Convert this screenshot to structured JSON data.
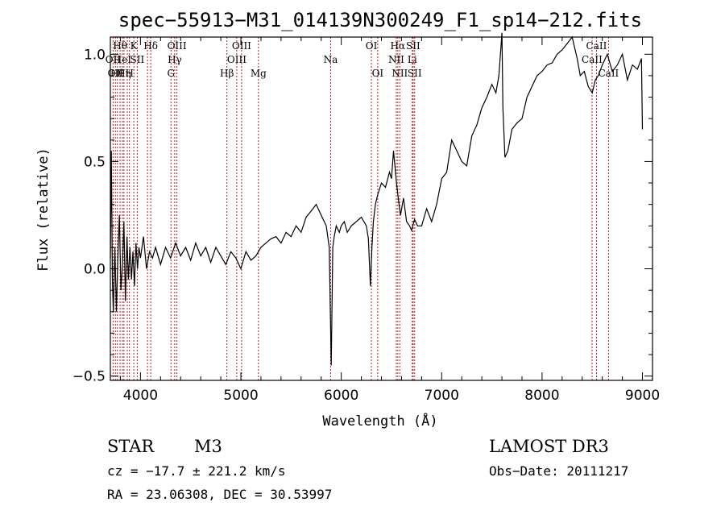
{
  "chart_data": {
    "type": "line",
    "title": "spec−55913−M31_014139N300249_F1_sp14−212.fits",
    "xlabel": "Wavelength (Å)",
    "ylabel": "Flux (relative)",
    "xlim": [
      3700,
      9100
    ],
    "ylim": [
      -0.52,
      1.08
    ],
    "xticks": [
      4000,
      5000,
      6000,
      7000,
      8000,
      9000
    ],
    "yticks": [
      -0.5,
      0.0,
      0.5,
      1.0
    ],
    "ytick_labels": [
      "−0.5",
      "0.0",
      "0.5",
      "1.0"
    ],
    "series": [
      {
        "color": "#000000",
        "x": [
          3700,
          3710,
          3720,
          3730,
          3745,
          3760,
          3775,
          3790,
          3805,
          3820,
          3835,
          3850,
          3865,
          3880,
          3895,
          3910,
          3925,
          3940,
          3955,
          3970,
          3985,
          4000,
          4030,
          4060,
          4090,
          4120,
          4150,
          4200,
          4250,
          4300,
          4350,
          4400,
          4450,
          4500,
          4550,
          4600,
          4650,
          4700,
          4750,
          4800,
          4850,
          4900,
          4950,
          5000,
          5050,
          5100,
          5150,
          5200,
          5250,
          5300,
          5350,
          5400,
          5450,
          5500,
          5550,
          5600,
          5650,
          5700,
          5750,
          5800,
          5850,
          5880,
          5900,
          5915,
          5930,
          5950,
          5980,
          6000,
          6030,
          6060,
          6100,
          6150,
          6200,
          6250,
          6270,
          6290,
          6305,
          6320,
          6340,
          6360,
          6400,
          6440,
          6480,
          6500,
          6520,
          6550,
          6570,
          6590,
          6620,
          6650,
          6680,
          6700,
          6730,
          6760,
          6800,
          6850,
          6900,
          6950,
          7000,
          7050,
          7100,
          7150,
          7200,
          7250,
          7300,
          7350,
          7400,
          7450,
          7500,
          7540,
          7570,
          7590,
          7600,
          7610,
          7630,
          7660,
          7700,
          7750,
          7800,
          7850,
          7900,
          7950,
          8000,
          8050,
          8100,
          8150,
          8200,
          8250,
          8300,
          8330,
          8350,
          8380,
          8420,
          8460,
          8500,
          8530,
          8560,
          8600,
          8650,
          8700,
          8750,
          8800,
          8850,
          8900,
          8950,
          8990,
          9000
        ],
        "y": [
          0.05,
          0.55,
          -0.05,
          -0.2,
          0.1,
          -0.2,
          0.05,
          0.25,
          -0.1,
          0.02,
          0.22,
          -0.15,
          0.15,
          -0.05,
          0.1,
          -0.05,
          0.08,
          -0.08,
          0.12,
          0.0,
          0.1,
          0.05,
          0.15,
          0.0,
          0.08,
          0.05,
          0.1,
          0.02,
          0.1,
          0.05,
          0.12,
          0.06,
          0.1,
          0.04,
          0.12,
          0.06,
          0.1,
          0.03,
          0.1,
          0.06,
          0.02,
          0.08,
          0.05,
          0.0,
          0.08,
          0.04,
          0.06,
          0.1,
          0.12,
          0.14,
          0.15,
          0.12,
          0.17,
          0.15,
          0.2,
          0.17,
          0.24,
          0.27,
          0.3,
          0.25,
          0.2,
          0.1,
          -0.45,
          0.1,
          0.15,
          0.2,
          0.17,
          0.2,
          0.22,
          0.17,
          0.2,
          0.22,
          0.24,
          0.2,
          0.14,
          -0.08,
          0.1,
          0.22,
          0.3,
          0.34,
          0.4,
          0.38,
          0.45,
          0.42,
          0.55,
          0.4,
          0.32,
          0.25,
          0.33,
          0.22,
          0.2,
          0.18,
          0.23,
          0.2,
          0.2,
          0.28,
          0.22,
          0.3,
          0.42,
          0.45,
          0.6,
          0.55,
          0.5,
          0.48,
          0.62,
          0.67,
          0.75,
          0.8,
          0.86,
          0.82,
          0.9,
          1.03,
          1.1,
          0.75,
          0.52,
          0.55,
          0.65,
          0.68,
          0.7,
          0.8,
          0.85,
          0.9,
          0.92,
          0.95,
          0.96,
          1.0,
          1.02,
          1.05,
          1.08,
          1.02,
          0.98,
          0.9,
          0.92,
          0.85,
          0.82,
          0.88,
          0.9,
          0.95,
          1.0,
          0.92,
          0.95,
          1.0,
          0.88,
          0.95,
          0.93,
          0.98,
          0.65
        ]
      }
    ],
    "line_markers": [
      {
        "x": 3727,
        "row": 1,
        "label": "OII"
      },
      {
        "x": 3750,
        "row": 2,
        "label": "OII"
      },
      {
        "x": 3770,
        "row": 2,
        "label": "Hθ"
      },
      {
        "x": 3797,
        "row": 0,
        "label": "Hθ"
      },
      {
        "x": 3820,
        "row": 1,
        "label": "HeI"
      },
      {
        "x": 3835,
        "row": 2,
        "label": "Hη"
      },
      {
        "x": 3869,
        "row": 1,
        "label": ""
      },
      {
        "x": 3890,
        "row": 2,
        "label": "H"
      },
      {
        "x": 3934,
        "row": 0,
        "label": "K"
      },
      {
        "x": 3968,
        "row": 1,
        "label": "SII"
      },
      {
        "x": 4102,
        "row": 0,
        "label": "Hδ"
      },
      {
        "x": 4070,
        "row": 1,
        "label": ""
      },
      {
        "x": 4304,
        "row": 2,
        "label": "G"
      },
      {
        "x": 4341,
        "row": 1,
        "label": "Hγ"
      },
      {
        "x": 4363,
        "row": 0,
        "label": "OIII"
      },
      {
        "x": 4861,
        "row": 2,
        "label": "Hβ"
      },
      {
        "x": 4959,
        "row": 1,
        "label": "OIII"
      },
      {
        "x": 5007,
        "row": 0,
        "label": "OIII"
      },
      {
        "x": 5175,
        "row": 2,
        "label": "Mg"
      },
      {
        "x": 5894,
        "row": 1,
        "label": "Na"
      },
      {
        "x": 6300,
        "row": 0,
        "label": "OI"
      },
      {
        "x": 6363,
        "row": 2,
        "label": "OI"
      },
      {
        "x": 6548,
        "row": 1,
        "label": "NII"
      },
      {
        "x": 6563,
        "row": 0,
        "label": "Hα"
      },
      {
        "x": 6583,
        "row": 2,
        "label": "NII"
      },
      {
        "x": 6707,
        "row": 1,
        "label": "Li"
      },
      {
        "x": 6716,
        "row": 0,
        "label": "SII"
      },
      {
        "x": 6731,
        "row": 2,
        "label": "SII"
      },
      {
        "x": 8498,
        "row": 1,
        "label": "CaII"
      },
      {
        "x": 8542,
        "row": 0,
        "label": "CaII"
      },
      {
        "x": 8662,
        "row": 2,
        "label": "CaII"
      }
    ]
  },
  "info": {
    "class": "STAR",
    "subclass": "M3",
    "survey": "LAMOST DR3",
    "cz": "cz = −17.7 ± 221.2 km/s",
    "obs_date": "Obs−Date: 20111217",
    "radec": "RA =  23.06308, DEC =  30.53997"
  },
  "colors": {
    "marker_line": "#b22222",
    "spectrum": "#000000"
  }
}
